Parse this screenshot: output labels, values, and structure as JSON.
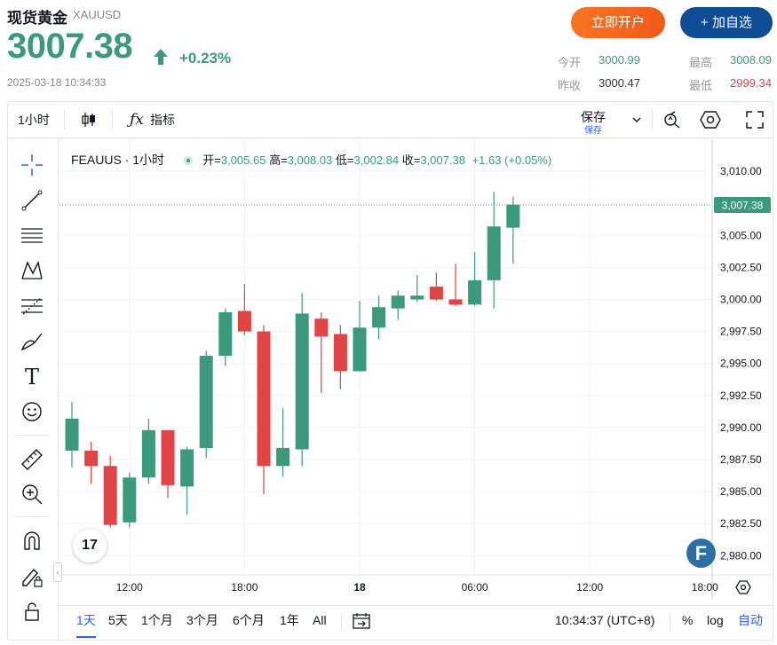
{
  "header": {
    "title": "现货黄金",
    "symbol": "XAUUSD",
    "price": "3007.38",
    "change": "+0.23%",
    "timestamp": "2025-03-18 10:34:33",
    "open_account_label": "立即开户",
    "add_watch_label": "+ 加自选",
    "stats": {
      "today_open_label": "今开",
      "today_open": "3000.99",
      "prev_close_label": "昨收",
      "prev_close": "3000.47",
      "high_label": "最高",
      "high": "3008.09",
      "low_label": "最低",
      "low": "2999.34"
    },
    "colors": {
      "up": "#3a9a7b",
      "down": "#e04444",
      "accent": "#2962ff"
    }
  },
  "toolbar": {
    "interval": "1小时",
    "indicators": "指标",
    "save": "保存",
    "save_sub": "保存",
    "icons": [
      "candles-icon",
      "fx-icon",
      "chevron-down-icon",
      "alert-icon",
      "settings-hexagon-icon",
      "fullscreen-icon"
    ]
  },
  "left_tools": [
    "crosshair-icon",
    "trend-line-icon",
    "horizontal-lines-icon",
    "pattern-icon",
    "fib-icon",
    "brush-icon",
    "text-icon",
    "emoji-icon",
    "ruler-icon",
    "zoom-in-icon",
    "magnet-icon",
    "lock-pencil-icon",
    "lock-icon"
  ],
  "legend": {
    "name": "FEAUUS · 1小时",
    "open_label": "开=",
    "open": "3,005.65",
    "high_label": "高=",
    "high": "3,008.03",
    "low_label": "低=",
    "low": "3,002.84",
    "close_label": "收=",
    "close": "3,007.38",
    "change": "+1.63 (+0.05%)"
  },
  "chart_data": {
    "type": "candlestick",
    "y_ticks": [
      "3,010.00",
      "3,007.50",
      "3,005.00",
      "3,002.50",
      "3,000.00",
      "2,997.50",
      "2,995.00",
      "2,992.50",
      "2,990.00",
      "2,987.50",
      "2,985.00",
      "2,982.50",
      "2,980.00"
    ],
    "x_ticks": [
      {
        "label": "12:00",
        "hour": 12
      },
      {
        "label": "18:00",
        "hour": 18
      },
      {
        "label": "18",
        "hour": 24
      },
      {
        "label": "06:00",
        "hour": 30
      },
      {
        "label": "12:00",
        "hour": 36
      },
      {
        "label": "18:00",
        "hour": 42
      }
    ],
    "ylim": [
      2978.5,
      3012.5
    ],
    "last_price": 3007.38,
    "last_price_label": "3,007.38",
    "candles": [
      {
        "h": 9,
        "o": 2988.2,
        "hi": 2992.0,
        "lo": 2986.9,
        "c": 2990.7
      },
      {
        "h": 10,
        "o": 2988.2,
        "hi": 2988.9,
        "lo": 2985.6,
        "c": 2987.0
      },
      {
        "h": 11,
        "o": 2987.0,
        "hi": 2987.8,
        "lo": 2982.2,
        "c": 2982.4
      },
      {
        "h": 12,
        "o": 2982.6,
        "hi": 2986.5,
        "lo": 2982.2,
        "c": 2986.1
      },
      {
        "h": 13,
        "o": 2986.1,
        "hi": 2990.7,
        "lo": 2985.6,
        "c": 2989.8
      },
      {
        "h": 14,
        "o": 2989.8,
        "hi": 2989.8,
        "lo": 2984.5,
        "c": 2985.5
      },
      {
        "h": 15,
        "o": 2985.4,
        "hi": 2988.5,
        "lo": 2983.2,
        "c": 2988.3
      },
      {
        "h": 16,
        "o": 2988.4,
        "hi": 2996.0,
        "lo": 2987.6,
        "c": 2995.6
      },
      {
        "h": 17,
        "o": 2995.6,
        "hi": 2999.3,
        "lo": 2994.8,
        "c": 2999.0
      },
      {
        "h": 18,
        "o": 2999.1,
        "hi": 3001.2,
        "lo": 2997.2,
        "c": 2997.5
      },
      {
        "h": 19,
        "o": 2997.5,
        "hi": 2998.0,
        "lo": 2984.8,
        "c": 2987.0
      },
      {
        "h": 20,
        "o": 2987.0,
        "hi": 2991.5,
        "lo": 2986.2,
        "c": 2988.4
      },
      {
        "h": 21,
        "o": 2988.3,
        "hi": 3000.5,
        "lo": 2987.0,
        "c": 2998.9
      },
      {
        "h": 22,
        "o": 2998.5,
        "hi": 2999.0,
        "lo": 2992.7,
        "c": 2997.1
      },
      {
        "h": 23,
        "o": 2997.3,
        "hi": 2998.0,
        "lo": 2993.0,
        "c": 2994.4
      },
      {
        "h": 24,
        "o": 2994.4,
        "hi": 2999.9,
        "lo": 2994.4,
        "c": 2997.8
      },
      {
        "h": 25,
        "o": 2997.8,
        "hi": 3000.3,
        "lo": 2996.9,
        "c": 2999.4
      },
      {
        "h": 26,
        "o": 2999.3,
        "hi": 3000.7,
        "lo": 2998.4,
        "c": 3000.3
      },
      {
        "h": 27,
        "o": 3000.0,
        "hi": 3001.9,
        "lo": 2999.8,
        "c": 3000.3
      },
      {
        "h": 28,
        "o": 3001.0,
        "hi": 3002.1,
        "lo": 2999.9,
        "c": 3000.0
      },
      {
        "h": 29,
        "o": 3000.0,
        "hi": 3002.8,
        "lo": 2999.5,
        "c": 2999.6
      },
      {
        "h": 30,
        "o": 2999.6,
        "hi": 3003.7,
        "lo": 2999.5,
        "c": 3001.5
      },
      {
        "h": 31,
        "o": 3001.5,
        "hi": 3008.4,
        "lo": 2999.3,
        "c": 3005.7
      },
      {
        "h": 32,
        "o": 3005.6,
        "hi": 3008.0,
        "lo": 3002.8,
        "c": 3007.4
      }
    ]
  },
  "bottom": {
    "ranges": [
      "1天",
      "5天",
      "1个月",
      "3个月",
      "6个月",
      "1年",
      "All"
    ],
    "active_range": "1天",
    "time": "10:34:37 (UTC+8)",
    "percent": "%",
    "log": "log",
    "auto": "自动"
  },
  "watermark": "F",
  "tv_logo": "17"
}
